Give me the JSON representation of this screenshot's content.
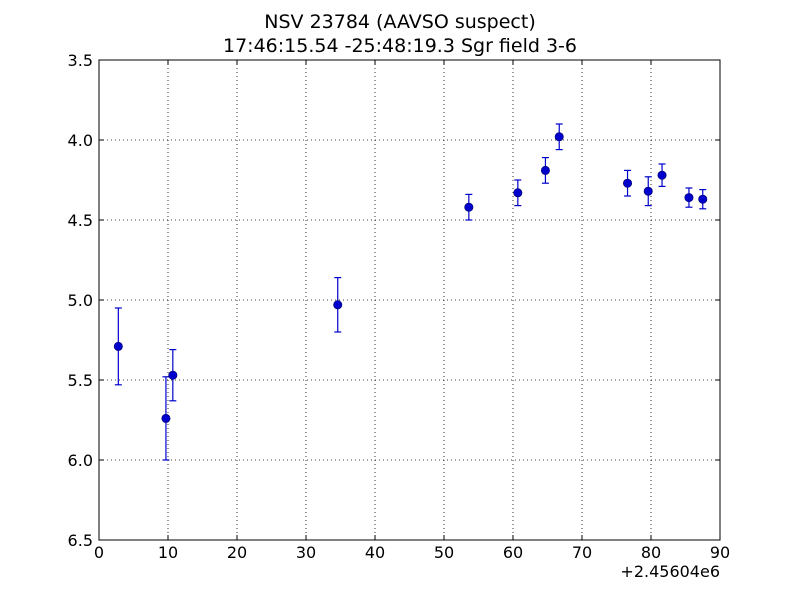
{
  "chart_data": {
    "type": "scatter",
    "title": "NSV 23784 (AAVSO suspect)",
    "subtitle": "17:46:15.54 -25:48:19.3 Sgr field 3-6",
    "xlabel": "",
    "ylabel": "",
    "x_offset_label": "+2.45604e6",
    "xlim": [
      0,
      90
    ],
    "ylim": [
      6.5,
      3.5
    ],
    "y_inverted": true,
    "grid": true,
    "x_ticks": [
      0,
      10,
      20,
      30,
      40,
      50,
      60,
      70,
      80,
      90
    ],
    "y_ticks": [
      3.5,
      4.0,
      4.5,
      5.0,
      5.5,
      6.0,
      6.5
    ],
    "x_tick_labels": [
      "0",
      "10",
      "20",
      "30",
      "40",
      "50",
      "60",
      "70",
      "80",
      "90"
    ],
    "y_tick_labels": [
      "3.5",
      "4.0",
      "4.5",
      "5.0",
      "5.5",
      "6.0",
      "6.5"
    ],
    "color": "#0000cc",
    "points": [
      {
        "x": 2.8,
        "y": 5.29,
        "err": 0.24
      },
      {
        "x": 9.7,
        "y": 5.74,
        "err": 0.26
      },
      {
        "x": 10.7,
        "y": 5.47,
        "err": 0.16
      },
      {
        "x": 34.6,
        "y": 5.03,
        "err": 0.17
      },
      {
        "x": 53.6,
        "y": 4.42,
        "err": 0.08
      },
      {
        "x": 60.7,
        "y": 4.33,
        "err": 0.08
      },
      {
        "x": 64.7,
        "y": 4.19,
        "err": 0.08
      },
      {
        "x": 66.7,
        "y": 3.98,
        "err": 0.08
      },
      {
        "x": 76.6,
        "y": 4.27,
        "err": 0.08
      },
      {
        "x": 79.6,
        "y": 4.32,
        "err": 0.09
      },
      {
        "x": 81.6,
        "y": 4.22,
        "err": 0.07
      },
      {
        "x": 85.5,
        "y": 4.36,
        "err": 0.06
      },
      {
        "x": 87.5,
        "y": 4.37,
        "err": 0.06
      }
    ]
  }
}
